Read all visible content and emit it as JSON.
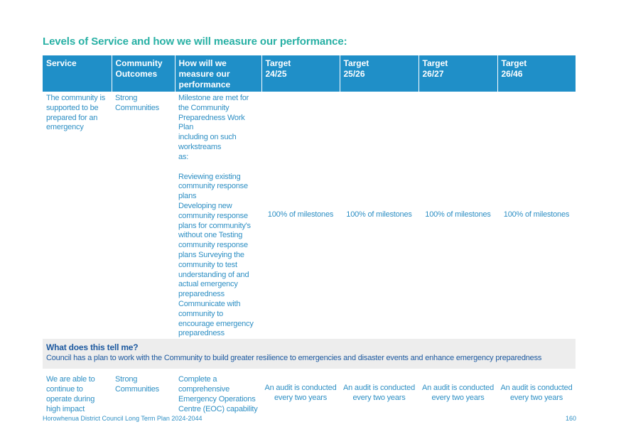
{
  "title": "Levels of Service and how we will measure our performance:",
  "headers": {
    "service": "Service",
    "outcomes": [
      "Community",
      "Outcomes"
    ],
    "measure": [
      "How will we",
      "measure our",
      "performance"
    ],
    "targets": [
      [
        "Target",
        "24/25"
      ],
      [
        "Target",
        "25/26"
      ],
      [
        "Target",
        "26/27"
      ],
      [
        "Target",
        "26/46"
      ]
    ]
  },
  "row1": {
    "service": [
      "The community is",
      "supported to be",
      "prepared for an",
      "emergency"
    ],
    "outcome": [
      "Strong",
      "Communities"
    ],
    "measure_part1": [
      "Milestone are met for",
      "the Community",
      "Preparedness Work Plan",
      "including on such",
      "workstreams",
      "as:"
    ],
    "measure_part2": [
      "Reviewing existing",
      "community response",
      "plans",
      "Developing new",
      "community response",
      "plans for community's",
      "without one Testing",
      "community response",
      "plans  Surveying the",
      "community to test",
      "understanding of and",
      "actual emergency",
      "preparedness",
      "Communicate with",
      "community to",
      "encourage emergency",
      "preparedness"
    ],
    "targets": [
      "100% of milestones",
      "100% of milestones",
      "100% of milestones",
      "100% of milestones"
    ]
  },
  "tell": {
    "title": "What does this tell me?",
    "text": "Council has a plan to work with the Community to build greater resilience to emergencies and disaster events and enhance emergency preparedness"
  },
  "row2": {
    "service": [
      "We are able to",
      "continue to",
      "operate during",
      "high impact"
    ],
    "outcome": [
      "Strong",
      "Communities"
    ],
    "measure": [
      "Complete a",
      "comprehensive",
      "Emergency Operations",
      "Centre (EOC) capability"
    ],
    "targets": [
      [
        "An audit is conducted",
        "every two years"
      ],
      [
        "An audit is conducted",
        "every two years"
      ],
      [
        "An audit is conducted",
        "every two years"
      ],
      [
        "An audit is conducted",
        "every two years"
      ]
    ]
  },
  "footer": {
    "left": "Horowhenua District Council Long Term Plan 2024-2044",
    "page": "160"
  },
  "colors": {
    "title": "#27b0a4",
    "header_bg": "#1f8fc8",
    "body_text": "#2e8fc4",
    "tell_bg": "#ededed",
    "tell_text": "#1e5aa0"
  }
}
